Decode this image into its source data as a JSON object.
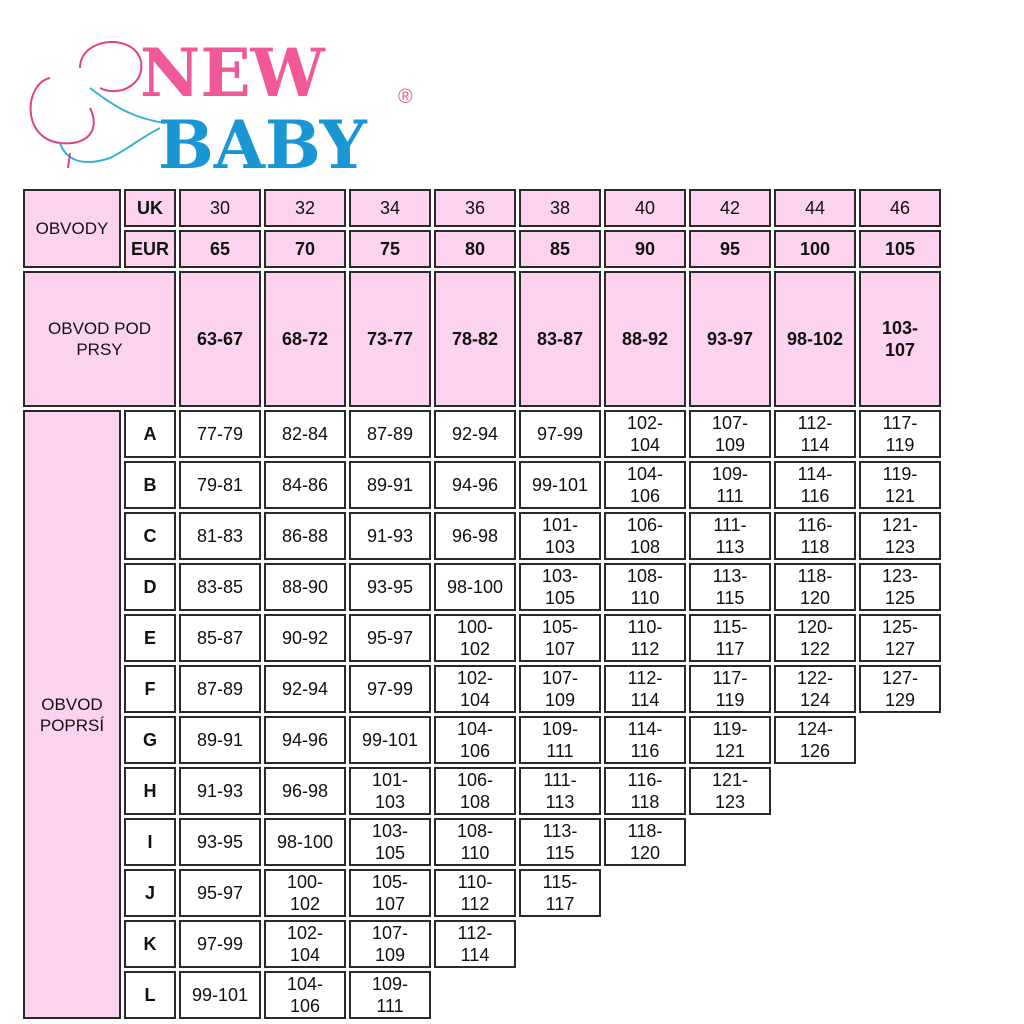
{
  "logo": {
    "line1": "NEW",
    "line2": "BABY",
    "mark": "®",
    "pink": "#f0589a",
    "blue": "#1b96d4"
  },
  "colors": {
    "header_bg": "#fbd3f1",
    "border": "#2a2a2a"
  },
  "table": {
    "obvody_label": "OBVODY",
    "uk_label": "UK",
    "eur_label": "EUR",
    "uk": [
      "30",
      "32",
      "34",
      "36",
      "38",
      "40",
      "42",
      "44",
      "46"
    ],
    "eur": [
      "65",
      "70",
      "75",
      "80",
      "85",
      "90",
      "95",
      "100",
      "105"
    ],
    "underbust_label": "OBVOD POD PRSY",
    "underbust": [
      "63-67",
      "68-72",
      "73-77",
      "78-82",
      "83-87",
      "88-92",
      "93-97",
      "98-102",
      "103-107"
    ],
    "bust_label": "OBVOD POPRSÍ",
    "rows": [
      {
        "cup": "A",
        "values": [
          "77-79",
          "82-84",
          "87-89",
          "92-94",
          "97-99",
          "102-104",
          "107-109",
          "112-114",
          "117-119"
        ]
      },
      {
        "cup": "B",
        "values": [
          "79-81",
          "84-86",
          "89-91",
          "94-96",
          "99-101",
          "104-106",
          "109-111",
          "114-116",
          "119-121"
        ]
      },
      {
        "cup": "C",
        "values": [
          "81-83",
          "86-88",
          "91-93",
          "96-98",
          "101-103",
          "106-108",
          "111-113",
          "116-118",
          "121-123"
        ]
      },
      {
        "cup": "D",
        "values": [
          "83-85",
          "88-90",
          "93-95",
          "98-100",
          "103-105",
          "108-110",
          "113-115",
          "118-120",
          "123-125"
        ]
      },
      {
        "cup": "E",
        "values": [
          "85-87",
          "90-92",
          "95-97",
          "100-102",
          "105-107",
          "110-112",
          "115-117",
          "120-122",
          "125-127"
        ]
      },
      {
        "cup": "F",
        "values": [
          "87-89",
          "92-94",
          "97-99",
          "102-104",
          "107-109",
          "112-114",
          "117-119",
          "122-124",
          "127-129"
        ]
      },
      {
        "cup": "G",
        "values": [
          "89-91",
          "94-96",
          "99-101",
          "104-106",
          "109-111",
          "114-116",
          "119-121",
          "124-126"
        ]
      },
      {
        "cup": "H",
        "values": [
          "91-93",
          "96-98",
          "101-103",
          "106-108",
          "111-113",
          "116-118",
          "121-123"
        ]
      },
      {
        "cup": "I",
        "values": [
          "93-95",
          "98-100",
          "103-105",
          "108-110",
          "113-115",
          "118-120"
        ]
      },
      {
        "cup": "J",
        "values": [
          "95-97",
          "100-102",
          "105-107",
          "110-112",
          "115-117"
        ]
      },
      {
        "cup": "K",
        "values": [
          "97-99",
          "102-104",
          "107-109",
          "112-114"
        ]
      },
      {
        "cup": "L",
        "values": [
          "99-101",
          "104-106",
          "109-111"
        ]
      }
    ]
  }
}
